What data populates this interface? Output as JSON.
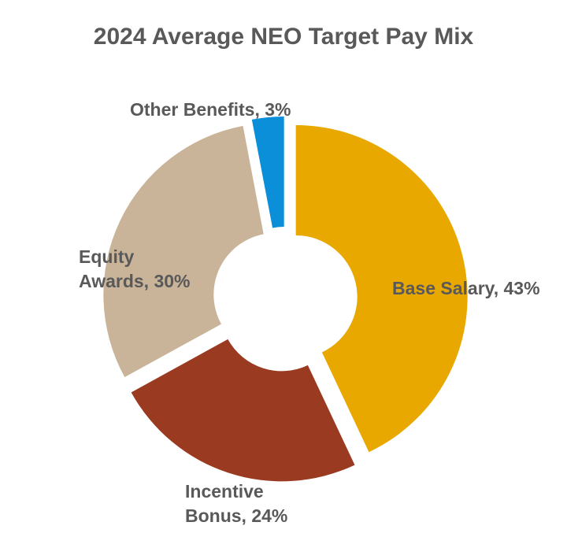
{
  "chart_data": {
    "type": "pie",
    "variant": "donut-exploded",
    "title": "2024 Average NEO Target Pay Mix",
    "slices": [
      {
        "label": "Base Salary",
        "value": 43,
        "display": "Base Salary, 43%",
        "color": "#E8A800"
      },
      {
        "label": "Incentive Bonus",
        "value": 24,
        "display_lines": [
          "Incentive",
          "Bonus, 24%"
        ],
        "color": "#9A3A20"
      },
      {
        "label": "Equity Awards",
        "value": 30,
        "display_lines": [
          "Equity",
          "Awards, 30%"
        ],
        "color": "#C9B49A"
      },
      {
        "label": "Other Benefits",
        "value": 3,
        "display": "Other Benefits, 3%",
        "color": "#0A8FD8"
      }
    ],
    "legend": "none"
  }
}
